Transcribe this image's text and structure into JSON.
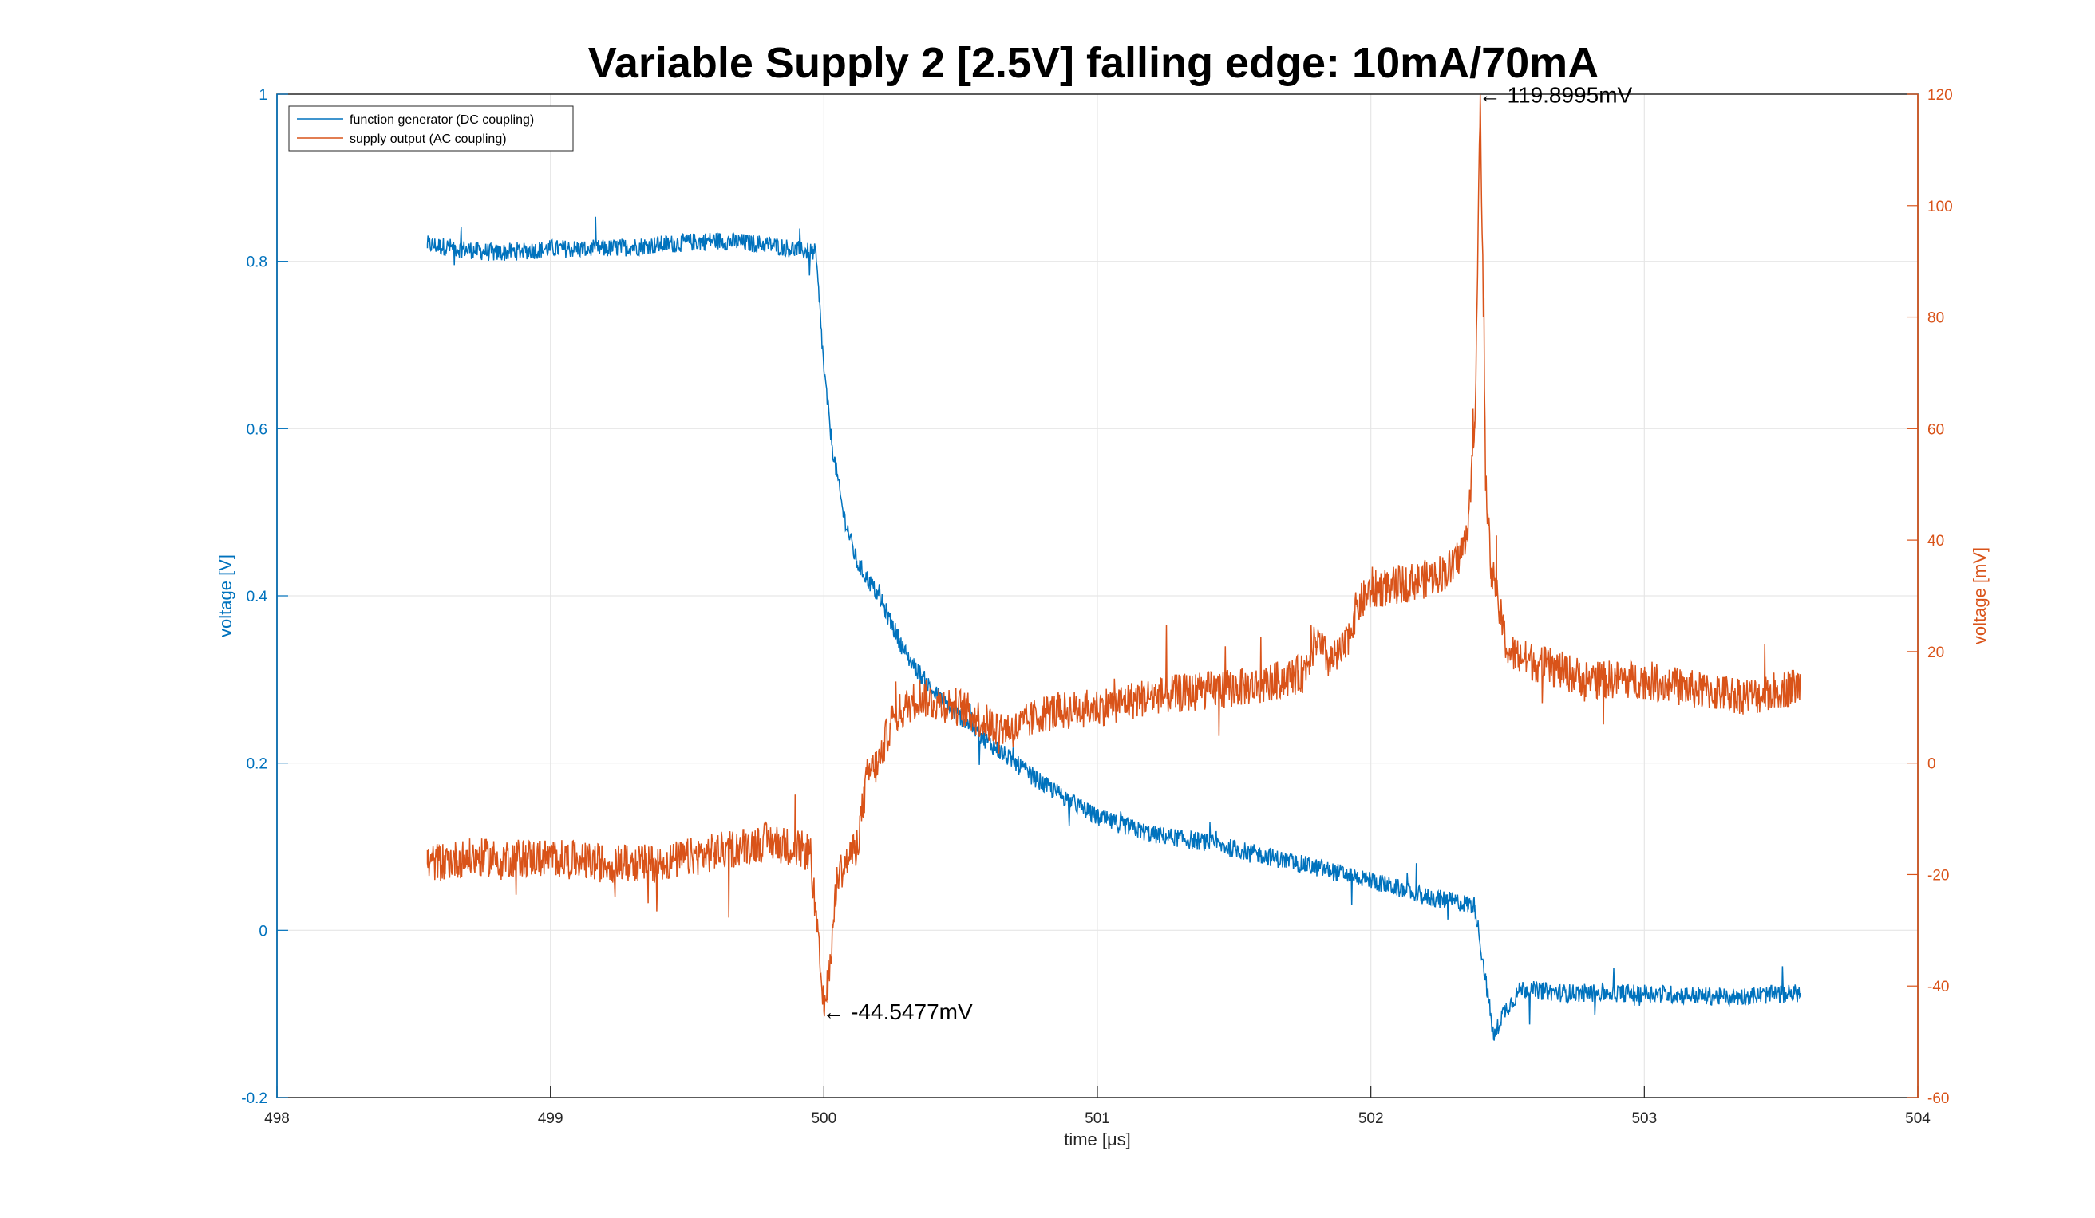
{
  "chart_data": {
    "type": "line",
    "title": "Variable Supply 2 [2.5V] falling edge: 10mA/70mA",
    "xlabel": "time [μs]",
    "ylabel_left": "voltage [V]",
    "ylabel_right": "voltage [mV]",
    "xlim": [
      498,
      504
    ],
    "ylim_left": [
      -0.2,
      1
    ],
    "ylim_right": [
      -60,
      120
    ],
    "x_ticks": [
      "498",
      "499",
      "500",
      "501",
      "502",
      "503",
      "504"
    ],
    "y_ticks_left": [
      "-0.2",
      "0",
      "0.2",
      "0.4",
      "0.6",
      "0.8",
      "1"
    ],
    "y_ticks_right": [
      "-60",
      "-40",
      "-20",
      "0",
      "20",
      "40",
      "60",
      "80",
      "100",
      "120"
    ],
    "grid": true,
    "legend_position": "top-left",
    "colors": {
      "left": "#0072BD",
      "right": "#D95319"
    },
    "series": [
      {
        "name": "function generator (DC coupling)",
        "axis": "left",
        "color": "#0072BD",
        "x": [
          498.55,
          498.8,
          499.0,
          499.2,
          499.4,
          499.6,
          499.8,
          499.97,
          499.99,
          500.0,
          500.03,
          500.07,
          500.12,
          500.2,
          500.3,
          500.4,
          500.5,
          500.6,
          500.7,
          500.8,
          500.9,
          501.0,
          501.2,
          501.4,
          501.6,
          501.8,
          502.0,
          502.2,
          502.3,
          502.38,
          502.42,
          502.45,
          502.48,
          502.55,
          502.7,
          503.0,
          503.3,
          503.57
        ],
        "y": [
          0.82,
          0.81,
          0.815,
          0.815,
          0.82,
          0.825,
          0.82,
          0.81,
          0.72,
          0.67,
          0.58,
          0.5,
          0.44,
          0.4,
          0.33,
          0.285,
          0.255,
          0.225,
          0.2,
          0.175,
          0.155,
          0.135,
          0.115,
          0.105,
          0.09,
          0.075,
          0.06,
          0.04,
          0.035,
          0.03,
          -0.06,
          -0.13,
          -0.1,
          -0.07,
          -0.075,
          -0.075,
          -0.08,
          -0.075
        ]
      },
      {
        "name": "supply output (AC coupling)",
        "axis": "right",
        "color": "#D95319",
        "x": [
          498.55,
          498.7,
          498.8,
          499.0,
          499.2,
          499.4,
          499.6,
          499.8,
          499.95,
          500.0,
          500.02,
          500.05,
          500.08,
          500.12,
          500.16,
          500.2,
          500.25,
          500.3,
          500.35,
          500.4,
          500.5,
          500.6,
          500.7,
          500.8,
          501.0,
          501.2,
          501.4,
          501.6,
          501.75,
          501.8,
          501.85,
          501.9,
          501.95,
          502.0,
          502.1,
          502.2,
          502.3,
          502.35,
          502.38,
          502.4,
          502.42,
          502.44,
          502.46,
          502.5,
          502.6,
          502.8,
          503.0,
          503.2,
          503.4,
          503.57
        ],
        "y": [
          -18,
          -17,
          -17,
          -17,
          -18,
          -18,
          -16,
          -14,
          -16,
          -44.5477,
          -37,
          -20,
          -18,
          -15,
          -2,
          0,
          8,
          10,
          12,
          11,
          10,
          7,
          6,
          9,
          10,
          12,
          13,
          14,
          16,
          22,
          18,
          20,
          28,
          31,
          32,
          33,
          35,
          40,
          60,
          119.8995,
          50,
          35,
          30,
          20,
          18,
          15,
          15,
          13,
          12,
          14
        ]
      }
    ],
    "annotations": [
      {
        "text": "← 119.8995mV",
        "x": 502.4,
        "y": 119.8995,
        "axis": "right"
      },
      {
        "text": "← -44.5477mV",
        "x": 500.0,
        "y": -44.5477,
        "axis": "right"
      }
    ]
  }
}
